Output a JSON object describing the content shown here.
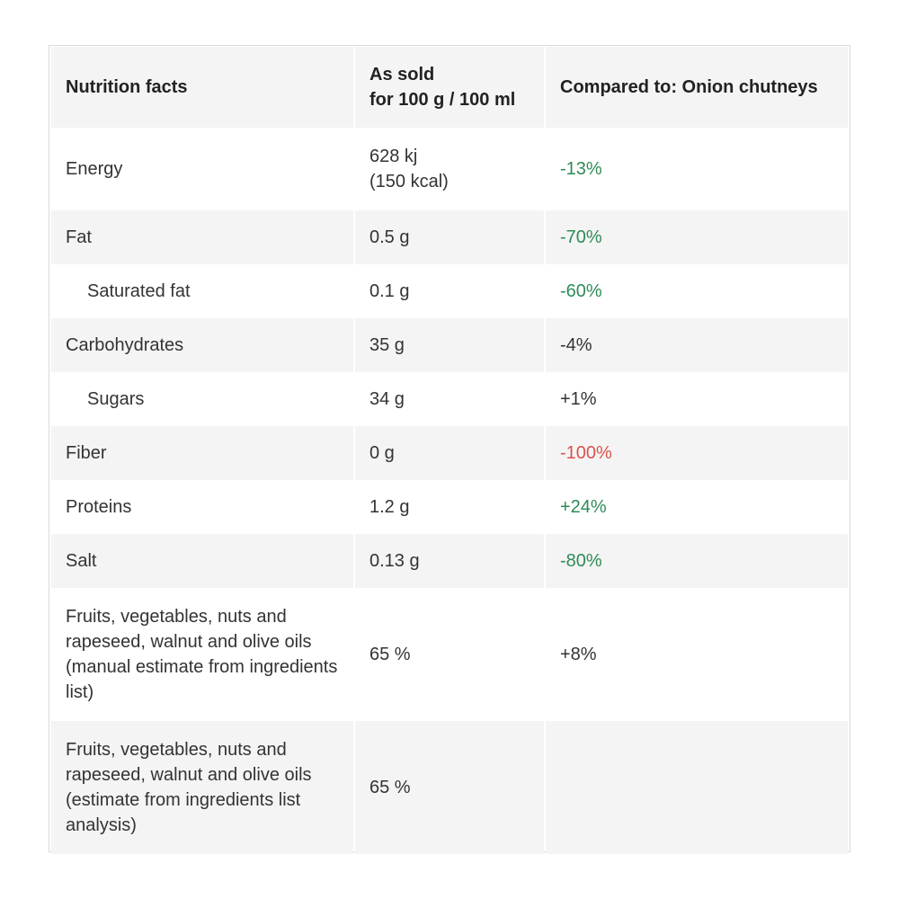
{
  "header": {
    "col1": "Nutrition facts",
    "col2_line1": "As sold",
    "col2_line2": "for 100 g / 100 ml",
    "col3": "Compared to: Onion chutneys"
  },
  "rows": [
    {
      "name": "Energy",
      "value_line1": "628 kj",
      "value_line2": "(150 kcal)",
      "compare": "-13%",
      "compare_status": "good"
    },
    {
      "name": "Fat",
      "value": "0.5 g",
      "compare": "-70%",
      "compare_status": "good"
    },
    {
      "name": "Saturated fat",
      "value": "0.1 g",
      "compare": "-60%",
      "compare_status": "good"
    },
    {
      "name": "Carbohydrates",
      "value": "35 g",
      "compare": "-4%",
      "compare_status": "neutral"
    },
    {
      "name": "Sugars",
      "value": "34 g",
      "compare": "+1%",
      "compare_status": "neutral"
    },
    {
      "name": "Fiber",
      "value": "0 g",
      "compare": "-100%",
      "compare_status": "bad"
    },
    {
      "name": "Proteins",
      "value": "1.2 g",
      "compare": "+24%",
      "compare_status": "good"
    },
    {
      "name": "Salt",
      "value": "0.13 g",
      "compare": "-80%",
      "compare_status": "good"
    },
    {
      "name": "Fruits, vegetables, nuts and rapeseed, walnut and olive oils (manual estimate from ingredients list)",
      "value": "65 %",
      "compare": "+8%",
      "compare_status": "neutral"
    },
    {
      "name": "Fruits, vegetables, nuts and rapeseed, walnut and olive oils (estimate from ingredients list analysis)",
      "value": "65 %",
      "compare": "",
      "compare_status": "neutral"
    }
  ],
  "colors": {
    "good": "#2e8b57",
    "bad": "#d9534f",
    "neutral": "#333333",
    "row_shade": "#f4f4f4"
  }
}
